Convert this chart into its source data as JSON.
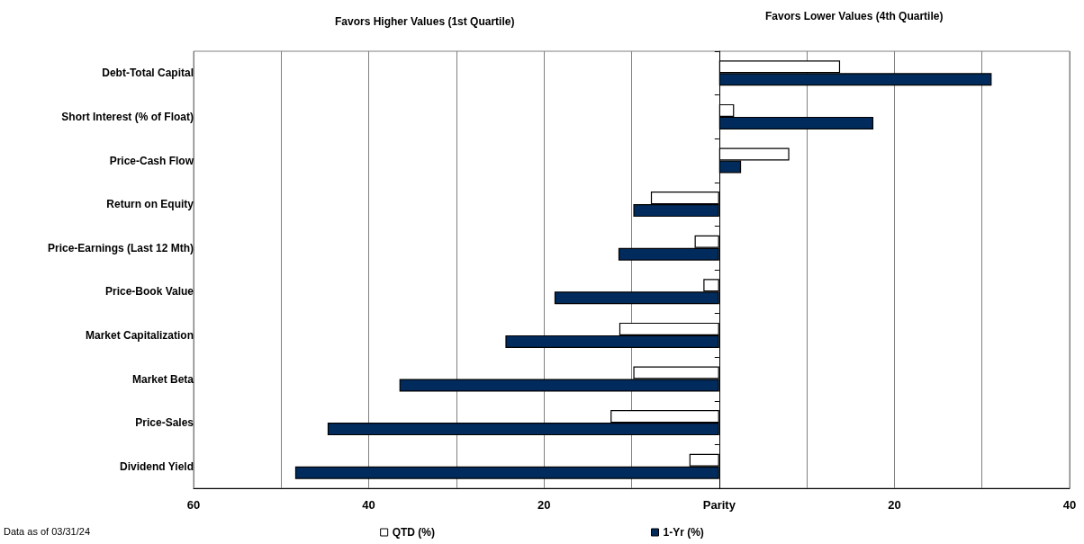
{
  "chart_data": {
    "type": "bar",
    "orientation": "horizontal",
    "categories": [
      "Debt-Total Capital",
      "Short Interest (% of Float)",
      "Price-Cash Flow",
      "Return on Equity",
      "Price-Earnings (Last 12 Mth)",
      "Price-Book Value",
      "Market Capitalization",
      "Market Beta",
      "Price-Sales",
      "Dividend Yield"
    ],
    "series": [
      {
        "name": "QTD (%)",
        "color": "#ffffff",
        "values": [
          13.8,
          1.7,
          8.0,
          -7.8,
          -2.8,
          -1.8,
          -11.4,
          -9.8,
          -12.4,
          -3.4
        ]
      },
      {
        "name": "1-Yr (%)",
        "color": "#002b5c",
        "values": [
          31.1,
          17.6,
          2.5,
          -9.8,
          -11.5,
          -18.8,
          -24.4,
          -36.5,
          -44.7,
          -48.4
        ]
      }
    ],
    "xlim": [
      -60,
      40
    ],
    "xticks": [
      {
        "value": -60,
        "label": "60"
      },
      {
        "value": -50,
        "label": null
      },
      {
        "value": -40,
        "label": "40"
      },
      {
        "value": -30,
        "label": null
      },
      {
        "value": -20,
        "label": "20"
      },
      {
        "value": -10,
        "label": null
      },
      {
        "value": 0,
        "label": "Parity"
      },
      {
        "value": 10,
        "label": null
      },
      {
        "value": 20,
        "label": "20"
      },
      {
        "value": 30,
        "label": null
      },
      {
        "value": 40,
        "label": "40"
      }
    ],
    "grid": "x",
    "legend": "bottom",
    "annotations": [
      "Favors Higher Values (1st Quartile)",
      "Favors Lower Values (4th Quartile)",
      "Data as of 03/31/24"
    ]
  }
}
